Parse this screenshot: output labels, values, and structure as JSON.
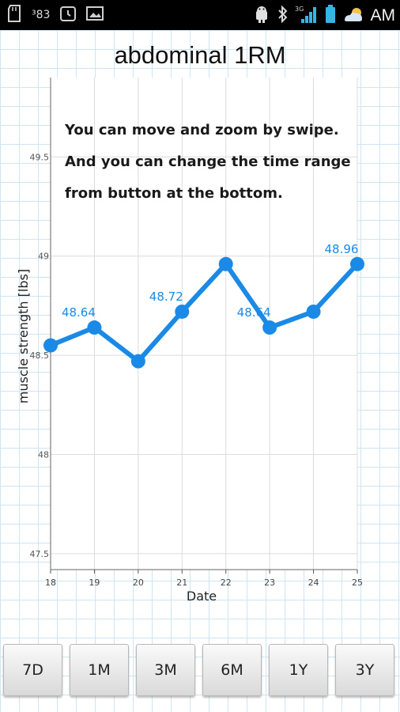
{
  "status_bar": {
    "left_text": "³83",
    "network_label": "3G",
    "time": "AM"
  },
  "title": "abdominal 1RM",
  "range_buttons": [
    "7D",
    "1M",
    "3M",
    "6M",
    "1Y",
    "3Y"
  ],
  "chart_data": {
    "type": "line",
    "title": "",
    "xlabel": "Date",
    "ylabel": "muscle strength [lbs]",
    "x": [
      18,
      19,
      20,
      21,
      22,
      23,
      24,
      25
    ],
    "y": [
      48.55,
      48.64,
      48.47,
      48.72,
      48.96,
      48.64,
      48.72,
      48.96
    ],
    "point_labels": [
      {
        "index": 1,
        "text": "48.64"
      },
      {
        "index": 3,
        "text": "48.72"
      },
      {
        "index": 5,
        "text": "48.64"
      },
      {
        "index": 7,
        "text": "48.96"
      }
    ],
    "xlim": [
      18,
      25
    ],
    "ylim": [
      47.42,
      49.9
    ],
    "yticks": [
      47.5,
      48,
      48.5,
      49,
      49.5
    ],
    "ytick_labels": [
      "47.5",
      "48",
      "48.5",
      "49",
      "49.5"
    ],
    "grid": true,
    "line_color": "#1a8ae6",
    "annotation_lines": [
      "You can move and zoom by swipe.",
      "And you can change the time range",
      "from button at the bottom."
    ]
  }
}
